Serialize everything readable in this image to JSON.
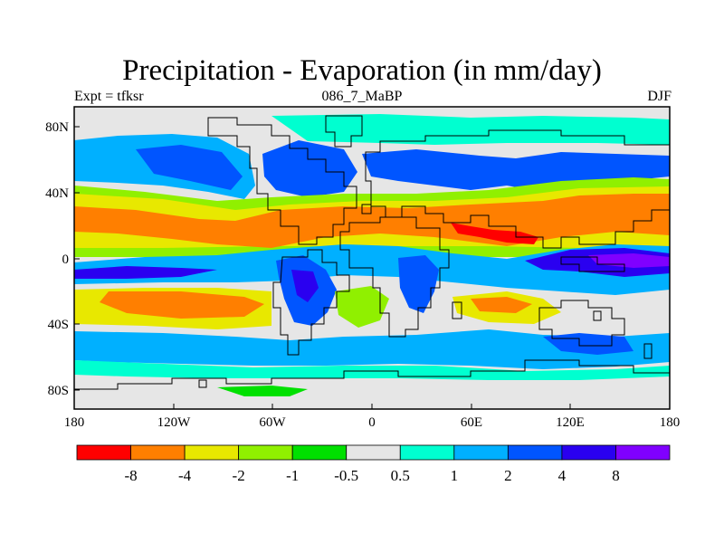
{
  "header": {
    "title": "Precipitation - Evaporation (in mm/day)",
    "left_label": "Expt = tfksr",
    "center_label": "086_7_MaBP",
    "right_label": "DJF"
  },
  "axes": {
    "x_ticks": [
      "180",
      "120W",
      "60W",
      "0",
      "60E",
      "120E",
      "180"
    ],
    "y_ticks": [
      "80N",
      "40N",
      "0",
      "40S",
      "80S"
    ]
  },
  "colorbar": {
    "labels": [
      "-8",
      "-4",
      "-2",
      "-1",
      "-0.5",
      "0.5",
      "1",
      "2",
      "4",
      "8"
    ],
    "colors": [
      "#ff0000",
      "#ff7f00",
      "#e8e800",
      "#90f000",
      "#00e000",
      "#e6e6e6",
      "#00ffd0",
      "#00b0ff",
      "#0055ff",
      "#2a00f0",
      "#8000ff"
    ]
  },
  "colors": {
    "background": "#e6e6e6",
    "coastline": "#000000"
  }
}
